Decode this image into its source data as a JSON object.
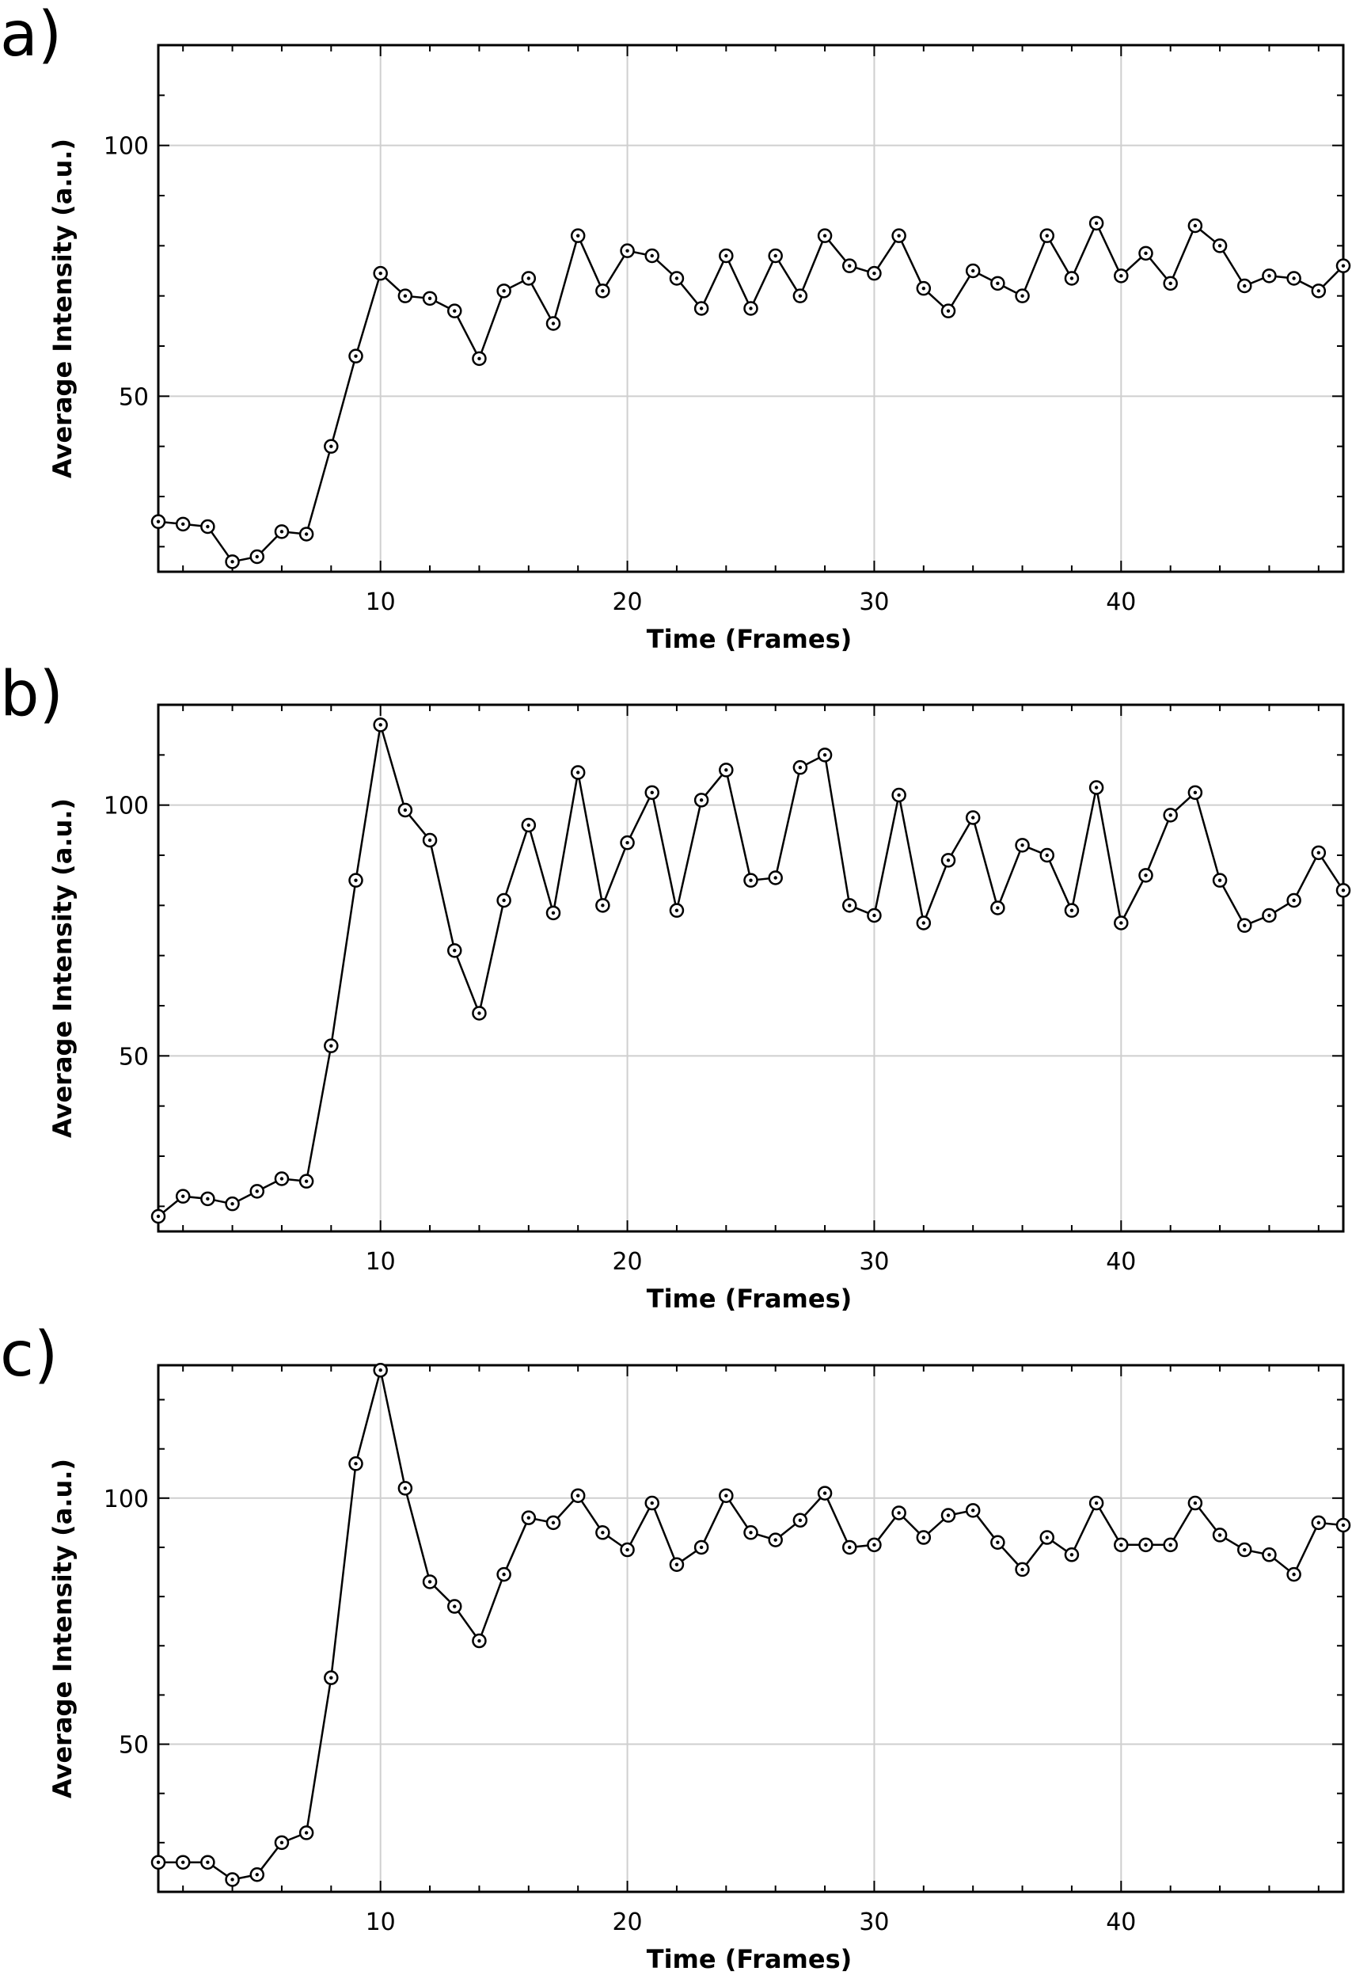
{
  "chart_data": [
    {
      "panel": "a)",
      "type": "line",
      "xlabel": "Time (Frames)",
      "ylabel": "Average Intensity (a.u.)",
      "xlim": [
        1,
        49
      ],
      "ylim": [
        15,
        120
      ],
      "xticks": [
        10,
        20,
        30,
        40
      ],
      "yticks": [
        50,
        100
      ],
      "grid": true,
      "marker": "circle",
      "x": [
        1,
        2,
        3,
        4,
        5,
        6,
        7,
        8,
        9,
        10,
        11,
        12,
        13,
        14,
        15,
        16,
        17,
        18,
        19,
        20,
        21,
        22,
        23,
        24,
        25,
        26,
        27,
        28,
        29,
        30,
        31,
        32,
        33,
        34,
        35,
        36,
        37,
        38,
        39,
        40,
        41,
        42,
        43,
        44,
        45,
        46,
        47,
        48,
        49
      ],
      "y": [
        25,
        24.5,
        24,
        17,
        18,
        23,
        22.5,
        40,
        58,
        74.5,
        70,
        69.5,
        67,
        57.5,
        71,
        73.5,
        64.5,
        82,
        71,
        79,
        78,
        73.5,
        67.5,
        78,
        67.5,
        78,
        70,
        82,
        76,
        74.5,
        82,
        71.5,
        67,
        75,
        72.5,
        70,
        82,
        73.5,
        84.5,
        74,
        78.5,
        72.5,
        84,
        80,
        72,
        74,
        73.5,
        71,
        76
      ]
    },
    {
      "panel": "b)",
      "type": "line",
      "xlabel": "Time (Frames)",
      "ylabel": "Average Intensity (a.u.)",
      "xlim": [
        1,
        49
      ],
      "ylim": [
        15,
        120
      ],
      "xticks": [
        10,
        20,
        30,
        40
      ],
      "yticks": [
        50,
        100
      ],
      "grid": true,
      "marker": "circle",
      "x": [
        1,
        2,
        3,
        4,
        5,
        6,
        7,
        8,
        9,
        10,
        11,
        12,
        13,
        14,
        15,
        16,
        17,
        18,
        19,
        20,
        21,
        22,
        23,
        24,
        25,
        26,
        27,
        28,
        29,
        30,
        31,
        32,
        33,
        34,
        35,
        36,
        37,
        38,
        39,
        40,
        41,
        42,
        43,
        44,
        45,
        46,
        47,
        48,
        49
      ],
      "y": [
        18,
        22,
        21.5,
        20.5,
        23,
        25.5,
        25,
        52,
        85,
        116,
        99,
        93,
        71,
        58.5,
        81,
        96,
        78.5,
        106.5,
        80,
        92.5,
        102.5,
        79,
        101,
        107,
        85,
        85.5,
        107.5,
        110,
        80,
        78,
        102,
        76.5,
        89,
        97.5,
        79.5,
        92,
        90,
        79,
        103.5,
        76.5,
        86,
        98,
        102.5,
        85,
        76,
        78,
        81,
        90.5,
        83
      ]
    },
    {
      "panel": "c)",
      "type": "line",
      "xlabel": "Time (Frames)",
      "ylabel": "Average Intensity (a.u.)",
      "xlim": [
        1,
        49
      ],
      "ylim": [
        20,
        127
      ],
      "xticks": [
        10,
        20,
        30,
        40
      ],
      "yticks": [
        50,
        100
      ],
      "grid": true,
      "marker": "circle",
      "x": [
        1,
        2,
        3,
        4,
        5,
        6,
        7,
        8,
        9,
        10,
        11,
        12,
        13,
        14,
        15,
        16,
        17,
        18,
        19,
        20,
        21,
        22,
        23,
        24,
        25,
        26,
        27,
        28,
        29,
        30,
        31,
        32,
        33,
        34,
        35,
        36,
        37,
        38,
        39,
        40,
        41,
        42,
        43,
        44,
        45,
        46,
        47,
        48,
        49
      ],
      "y": [
        26,
        26,
        26,
        22.5,
        23.5,
        30,
        32,
        63.5,
        107,
        126,
        102,
        83,
        78,
        71,
        84.5,
        96,
        95,
        100.5,
        93,
        89.5,
        99,
        86.5,
        90,
        100.5,
        93,
        91.5,
        95.5,
        101,
        90,
        90.5,
        97,
        92,
        96.5,
        97.5,
        91,
        85.5,
        92,
        88.5,
        99,
        90.5,
        90.5,
        90.5,
        99,
        92.5,
        89.5,
        88.5,
        84.5,
        95,
        94.5
      ]
    }
  ]
}
